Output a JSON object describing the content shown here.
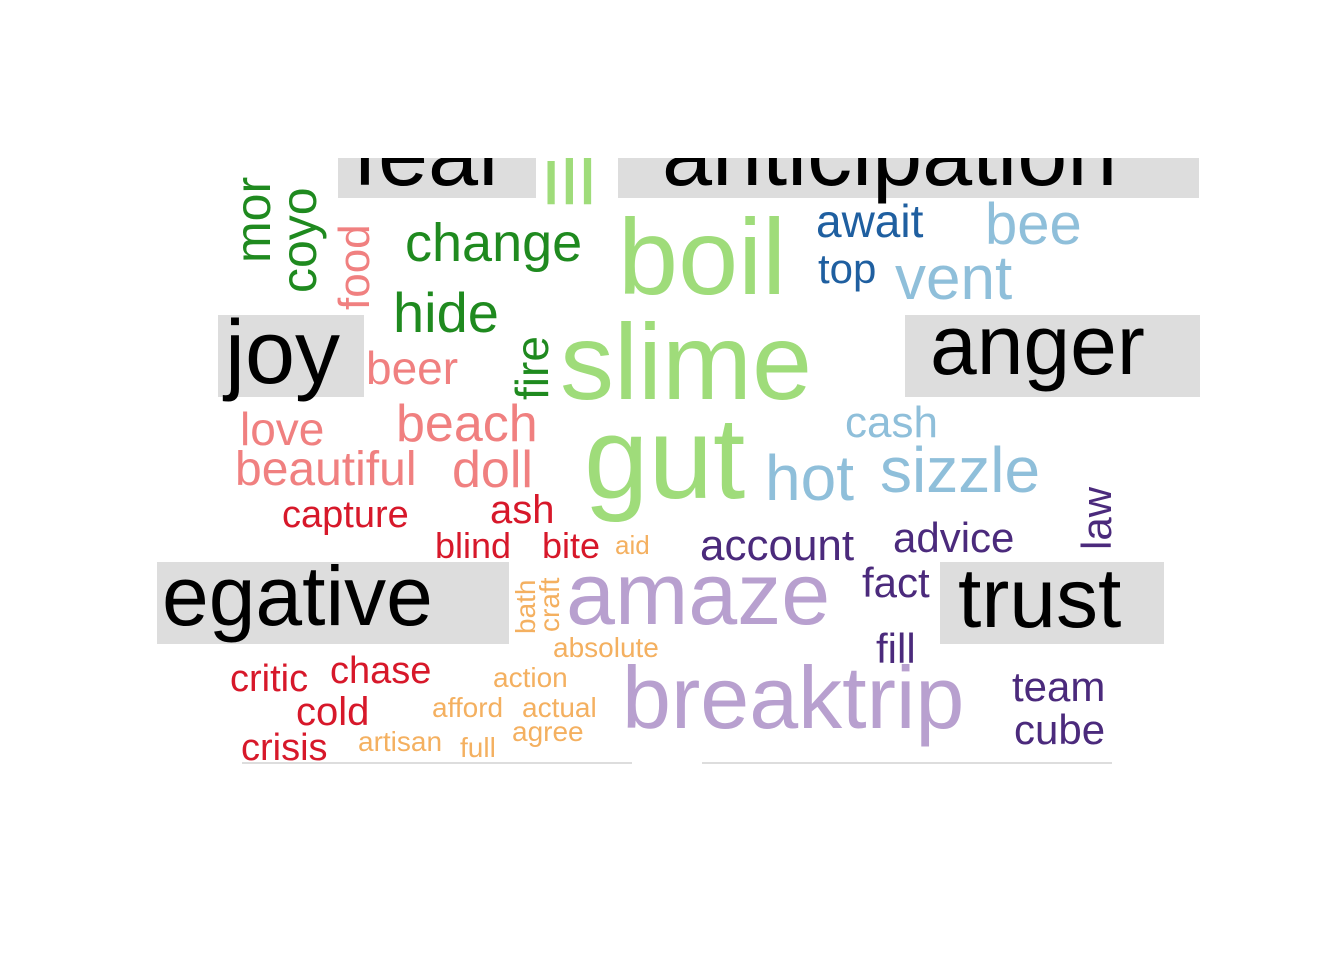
{
  "colors": {
    "fear": "#1f8a1f",
    "fear_light": "#f08080",
    "anticipation": "#1f5fa0",
    "anticipation_light": "#8fbfda",
    "joy": "#f08080",
    "anger": "#9fdc7a",
    "negative": "#d7182a",
    "negative_light": "#f4b060",
    "trust": "#4b2a7c",
    "surprise": "#b8a0cf",
    "category_label": "#000000",
    "category_box": "#dddddd"
  },
  "categories": {
    "fear": "fear",
    "anticipation": "anticipation",
    "joy": "joy",
    "anger": "anger",
    "negative": "egative",
    "trust": "trust"
  },
  "words": {
    "mor": "mor",
    "coyo": "coyo",
    "food": "food",
    "change": "change",
    "hide": "hide",
    "fire": "fire",
    "ill": "ill",
    "boil": "boil",
    "slime": "slime",
    "gut": "gut",
    "await": "await",
    "top": "top",
    "bee": "bee",
    "vent": "vent",
    "cash": "cash",
    "hot": "hot",
    "sizzle": "sizzle",
    "beer": "beer",
    "love": "love",
    "beach": "beach",
    "beautiful": "beautiful",
    "doll": "doll",
    "capture": "capture",
    "ash": "ash",
    "blind": "blind",
    "bite": "bite",
    "aid": "aid",
    "account": "account",
    "advice": "advice",
    "law": "law",
    "fact": "fact",
    "amaze": "amaze",
    "bath": "bath",
    "craft": "craft",
    "absolute": "absolute",
    "fill": "fill",
    "critic": "critic",
    "chase": "chase",
    "action": "action",
    "cold": "cold",
    "afford": "afford",
    "actual": "actual",
    "agree": "agree",
    "crisis": "crisis",
    "artisan": "artisan",
    "full": "full",
    "breaktrip": "breaktrip",
    "team": "team",
    "cube": "cube"
  }
}
